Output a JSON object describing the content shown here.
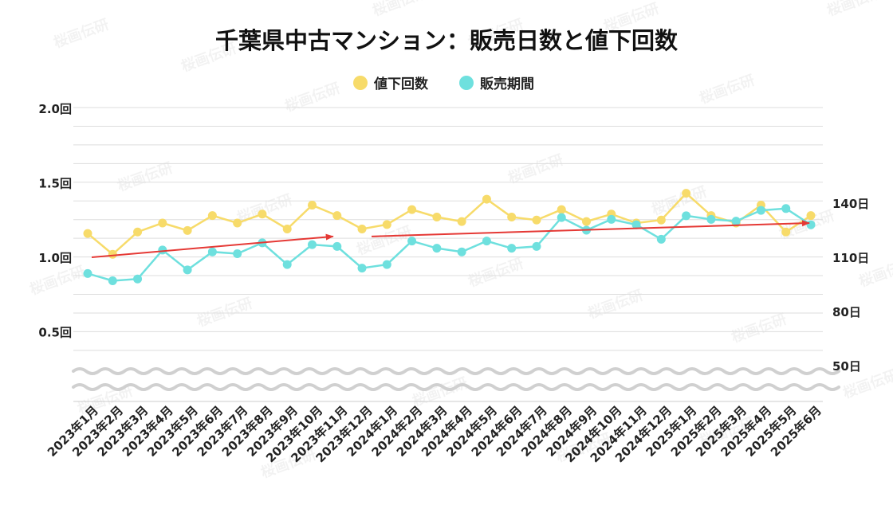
{
  "chart_data": {
    "type": "line",
    "title": "千葉県中古マンション：販売日数と値下回数",
    "categories": [
      "2023年1月",
      "2023年2月",
      "2023年3月",
      "2023年4月",
      "2023年5月",
      "2023年6月",
      "2023年7月",
      "2023年8月",
      "2023年9月",
      "2023年10月",
      "2023年11月",
      "2023年12月",
      "2024年1月",
      "2024年2月",
      "2024年3月",
      "2024年4月",
      "2024年5月",
      "2024年6月",
      "2024年7月",
      "2024年8月",
      "2024年9月",
      "2024年10月",
      "2024年11月",
      "2024年12月",
      "2025年1月",
      "2025年2月",
      "2025年3月",
      "2025年4月",
      "2025年5月",
      "2025年6月"
    ],
    "series": [
      {
        "name": "販売期間",
        "axis": "right",
        "color": "#6EE0DE",
        "values": [
          101,
          97,
          98,
          114,
          103,
          113,
          112,
          118,
          106,
          117,
          116,
          104,
          106,
          119,
          115,
          113,
          119,
          115,
          116,
          132,
          125,
          131,
          128,
          120,
          133,
          131,
          130,
          136,
          137,
          128
        ]
      },
      {
        "name": "値下回数",
        "axis": "left",
        "color": "#F7DB6A",
        "values": [
          1.16,
          1.02,
          1.17,
          1.23,
          1.18,
          1.28,
          1.23,
          1.29,
          1.19,
          1.35,
          1.28,
          1.19,
          1.22,
          1.32,
          1.27,
          1.24,
          1.39,
          1.27,
          1.25,
          1.32,
          1.24,
          1.29,
          1.23,
          1.25,
          1.43,
          1.28,
          1.23,
          1.35,
          1.17,
          1.28
        ]
      }
    ],
    "left_axis": {
      "ticks": [
        "0.5回",
        "1.0回",
        "1.5回",
        "2.0回"
      ],
      "tick_values": [
        0.5,
        1.0,
        1.5,
        2.0
      ]
    },
    "right_axis": {
      "ticks": [
        "50日",
        "80日",
        "110日",
        "140日"
      ],
      "tick_values": [
        50,
        80,
        110,
        140
      ]
    },
    "axis_break": true,
    "legend_position": "top-center",
    "trend_color": "#E53935",
    "trend_lines": [
      {
        "from": [
          "2023年1月",
          1.0
        ],
        "to": [
          "2023年11月",
          1.14
        ]
      },
      {
        "from": [
          "2023年12月",
          1.14
        ],
        "to": [
          "2025年6月",
          1.23
        ]
      }
    ],
    "watermark": "桜画伝研"
  }
}
